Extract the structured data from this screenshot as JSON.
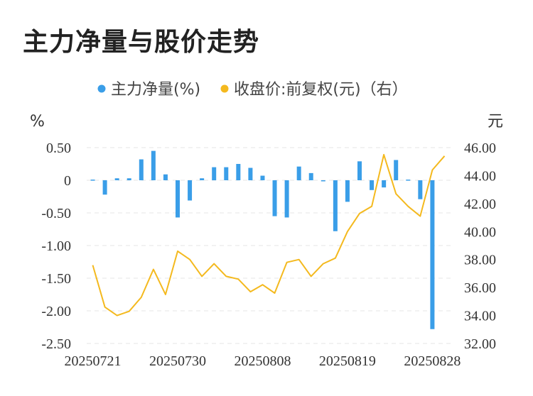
{
  "title": "主力净量与股价走势",
  "chart_data": {
    "type": "bar+line",
    "legend": [
      {
        "label": "主力净量(%)",
        "color": "#3a9ee8"
      },
      {
        "label": "收盘价:前复权(元)（右）",
        "color": "#f4b91e"
      }
    ],
    "left_unit": "%",
    "right_unit": "元",
    "left_ticks": [
      "0.50",
      "0",
      "-0.50",
      "-1.00",
      "-1.50",
      "-2.00",
      "-2.50"
    ],
    "right_ticks": [
      "46.00",
      "44.00",
      "42.00",
      "40.00",
      "38.00",
      "36.00",
      "34.00",
      "32.00"
    ],
    "left_ylim": [
      -2.5,
      0.5
    ],
    "right_ylim": [
      32,
      46
    ],
    "x_tick_labels": [
      "20250721",
      "20250730",
      "20250808",
      "20250819",
      "20250828"
    ],
    "x_tick_index": [
      0,
      7,
      14,
      21,
      28
    ],
    "dates": [
      "20250721",
      "20250722",
      "20250723",
      "20250724",
      "20250725",
      "20250728",
      "20250729",
      "20250730",
      "20250731",
      "20250801",
      "20250804",
      "20250805",
      "20250806",
      "20250807",
      "20250808",
      "20250811",
      "20250812",
      "20250813",
      "20250814",
      "20250815",
      "20250818",
      "20250819",
      "20250820",
      "20250821",
      "20250822",
      "20250825",
      "20250826",
      "20250827",
      "20250828",
      "20250829"
    ],
    "net_flow": [
      0.01,
      -0.22,
      0.03,
      0.03,
      0.32,
      0.45,
      0.09,
      -0.57,
      -0.31,
      0.03,
      0.2,
      0.2,
      0.25,
      0.19,
      0.07,
      -0.55,
      -0.57,
      0.21,
      0.11,
      -0.01,
      -0.78,
      -0.33,
      0.29,
      -0.15,
      -0.11,
      0.31,
      0.01,
      -0.29,
      -2.28,
      0.0
    ],
    "close_price": [
      37.6,
      34.6,
      34.0,
      34.3,
      35.3,
      37.3,
      35.5,
      38.6,
      38.0,
      36.8,
      37.7,
      36.8,
      36.6,
      35.7,
      36.2,
      35.6,
      37.8,
      38.0,
      36.8,
      37.7,
      38.1,
      40.0,
      41.3,
      41.8,
      45.5,
      42.7,
      41.8,
      41.1,
      44.4,
      45.4
    ]
  }
}
